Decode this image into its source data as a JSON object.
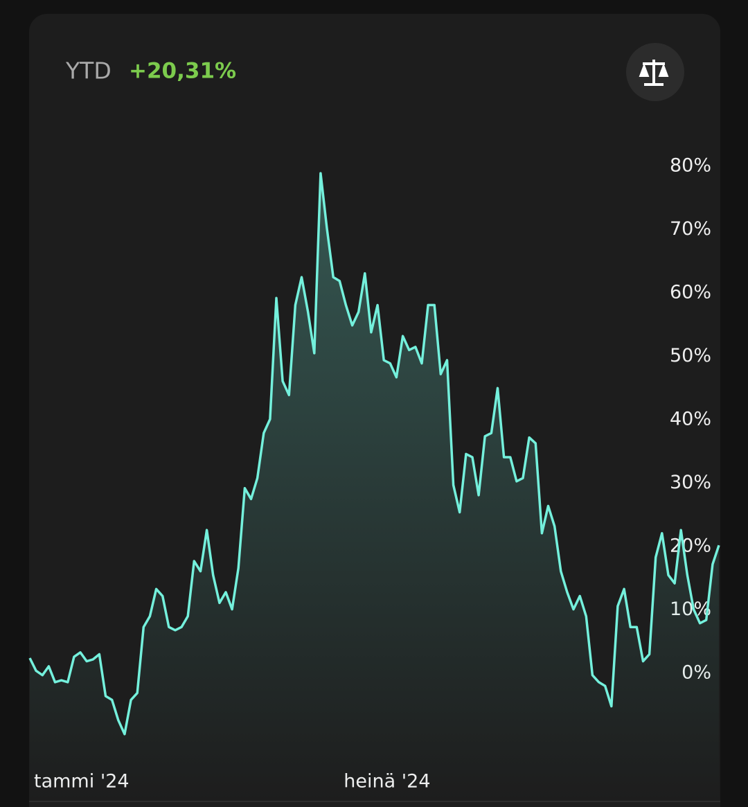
{
  "header": {
    "period": "YTD",
    "change": "+20,31%"
  },
  "chart_data": {
    "type": "line",
    "values": [
      2.4,
      0.4,
      -0.3,
      1.1,
      -1.4,
      -1.1,
      -1.4,
      2.6,
      3.3,
      1.9,
      2.2,
      3.0,
      -3.6,
      -4.2,
      -7.4,
      -9.6,
      -4.2,
      -3.1,
      7.3,
      9.0,
      13.3,
      12.2,
      7.3,
      6.8,
      7.3,
      9.0,
      17.7,
      16.1,
      22.6,
      15.5,
      11.1,
      12.8,
      10.1,
      16.6,
      29.2,
      27.5,
      30.8,
      37.9,
      40.1,
      59.2,
      46.1,
      43.9,
      58.1,
      62.5,
      57.0,
      50.5,
      78.9,
      70.2,
      62.5,
      61.9,
      58.1,
      54.9,
      57.0,
      63.1,
      53.8,
      58.1,
      49.4,
      48.9,
      46.7,
      53.2,
      51.0,
      51.5,
      48.9,
      58.1,
      58.1,
      47.2,
      49.4,
      29.7,
      25.4,
      34.6,
      34.1,
      28.1,
      37.4,
      37.9,
      45.0,
      34.1,
      34.1,
      30.3,
      30.8,
      37.2,
      36.3,
      22.1,
      26.4,
      23.2,
      16.1,
      12.8,
      10.1,
      12.2,
      9.0,
      -0.3,
      -1.4,
      -2.0,
      -5.2,
      10.6,
      13.3,
      7.3,
      7.3,
      1.9,
      3.0,
      18.3,
      22.1,
      15.5,
      14.2,
      22.6,
      15.5,
      10.1,
      7.9,
      8.4,
      17.2,
      20.2
    ],
    "color": "#74f0dc",
    "xlim": [
      0,
      109
    ],
    "xticks": [
      {
        "value": 0,
        "label": "tammi '24"
      },
      {
        "value": 49,
        "label": "heinä '24"
      }
    ],
    "ylim": [
      -12,
      90
    ],
    "yticks": [
      {
        "value": 0,
        "label": "0%"
      },
      {
        "value": 10,
        "label": "10%"
      },
      {
        "value": 20,
        "label": "20%"
      },
      {
        "value": 30,
        "label": "30%"
      },
      {
        "value": 40,
        "label": "40%"
      },
      {
        "value": 50,
        "label": "50%"
      },
      {
        "value": 60,
        "label": "60%"
      },
      {
        "value": 70,
        "label": "70%"
      },
      {
        "value": 80,
        "label": "80%"
      }
    ],
    "grid": false
  }
}
